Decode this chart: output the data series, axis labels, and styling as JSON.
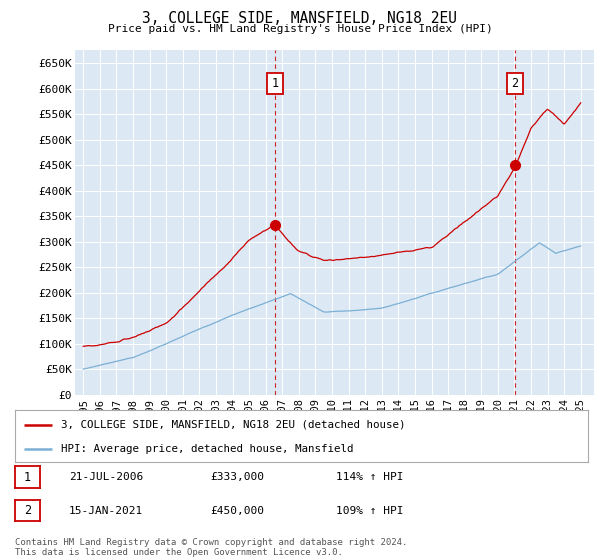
{
  "title": "3, COLLEGE SIDE, MANSFIELD, NG18 2EU",
  "subtitle": "Price paid vs. HM Land Registry's House Price Index (HPI)",
  "fig_bg_color": "#ffffff",
  "plot_bg_color": "#dce9f5",
  "red_color": "#cc0000",
  "blue_color": "#7bafd4",
  "grid_color": "#ffffff",
  "ylim": [
    0,
    675000
  ],
  "yticks": [
    0,
    50000,
    100000,
    150000,
    200000,
    250000,
    300000,
    350000,
    400000,
    450000,
    500000,
    550000,
    600000,
    650000
  ],
  "sale1_date": 2006.55,
  "sale1_price": 333000,
  "sale1_label": "1",
  "sale2_date": 2021.04,
  "sale2_price": 450000,
  "sale2_label": "2",
  "legend_line1": "3, COLLEGE SIDE, MANSFIELD, NG18 2EU (detached house)",
  "legend_line2": "HPI: Average price, detached house, Mansfield",
  "table_row1": [
    "1",
    "21-JUL-2006",
    "£333,000",
    "114% ↑ HPI"
  ],
  "table_row2": [
    "2",
    "15-JAN-2021",
    "£450,000",
    "109% ↑ HPI"
  ],
  "footnote": "Contains HM Land Registry data © Crown copyright and database right 2024.\nThis data is licensed under the Open Government Licence v3.0.",
  "xmin": 1994.5,
  "xmax": 2025.8
}
